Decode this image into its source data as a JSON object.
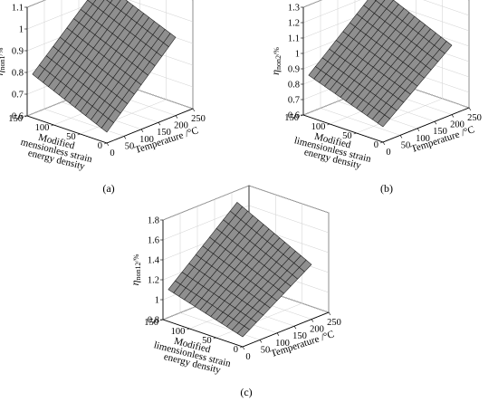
{
  "figure": {
    "panels": [
      "(a)",
      "(b)",
      "(c)"
    ]
  },
  "chart_data": [
    {
      "type": "surface",
      "panel_label": "(a)",
      "zlabel": "η_non1/%",
      "zlabel_main": "η",
      "zlabel_sub": "non1",
      "zlabel_unit": "/%",
      "xlabel": "Temperature /°C",
      "ylabel_lines": [
        "Modified",
        "mensionless strain",
        "energy density"
      ],
      "x_ticks": [
        "0",
        "50",
        "100",
        "150",
        "200",
        "250"
      ],
      "y_ticks": [
        "0",
        "50",
        "100",
        "150"
      ],
      "z_ticks": [
        "0.6",
        "0.7",
        "0.8",
        "0.9",
        "1",
        "1.1"
      ],
      "xlim": [
        0,
        250
      ],
      "ylim": [
        0,
        150
      ],
      "zlim": [
        0.6,
        1.1
      ],
      "x_range": [
        0,
        200
      ],
      "y_range": [
        0,
        140
      ],
      "grid_n": [
        10,
        14
      ],
      "corner_values": {
        "x0y0": 0.65,
        "x1y0": 0.96,
        "x0y1": 0.8,
        "x1y1": 1.1
      },
      "surface_color": "#8f8f8f"
    },
    {
      "type": "surface",
      "panel_label": "(b)",
      "zlabel": "η_non2/%",
      "zlabel_main": "η",
      "zlabel_sub": "non2",
      "zlabel_unit": "/%",
      "xlabel": "Temperature /°C",
      "ylabel_lines": [
        "Modified",
        "limensionless strain",
        "energy density"
      ],
      "x_ticks": [
        "0",
        "50",
        "100",
        "150",
        "200",
        "250"
      ],
      "y_ticks": [
        "0",
        "50",
        "100",
        "150"
      ],
      "z_ticks": [
        "0.6",
        "0.7",
        "0.8",
        "0.9",
        "1",
        "1.1",
        "1.2",
        "1.3"
      ],
      "xlim": [
        0,
        250
      ],
      "ylim": [
        0,
        150
      ],
      "zlim": [
        0.6,
        1.3
      ],
      "x_range": [
        0,
        200
      ],
      "y_range": [
        0,
        140
      ],
      "grid_n": [
        10,
        14
      ],
      "corner_values": {
        "x0y0": 0.7,
        "x1y0": 1.05,
        "x0y1": 0.87,
        "x1y1": 1.26
      },
      "surface_color": "#8f8f8f"
    },
    {
      "type": "surface",
      "panel_label": "(c)",
      "zlabel": "η_non12/%",
      "zlabel_main": "η",
      "zlabel_sub": "non12",
      "zlabel_unit": "/%",
      "xlabel": "Temperature /°C",
      "ylabel_lines": [
        "Modified",
        "limensionless strain",
        "energy density"
      ],
      "x_ticks": [
        "0",
        "50",
        "100",
        "150",
        "200",
        "250"
      ],
      "y_ticks": [
        "0",
        "50",
        "100",
        "150"
      ],
      "z_ticks": [
        "0.8",
        "1",
        "1.2",
        "1.4",
        "1.6",
        "1.8"
      ],
      "xlim": [
        0,
        250
      ],
      "ylim": [
        0,
        150
      ],
      "zlim": [
        0.8,
        1.8
      ],
      "x_range": [
        0,
        200
      ],
      "y_range": [
        0,
        140
      ],
      "grid_n": [
        10,
        14
      ],
      "corner_values": {
        "x0y0": 0.9,
        "x1y0": 1.35,
        "x0y1": 1.12,
        "x1y1": 1.72
      },
      "surface_color": "#8f8f8f"
    }
  ]
}
